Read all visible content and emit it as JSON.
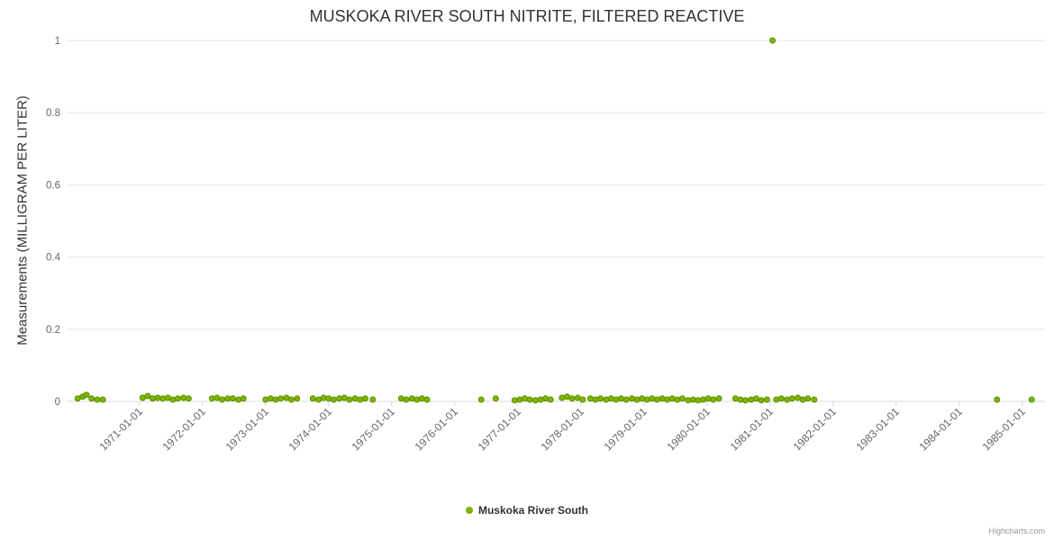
{
  "chart": {
    "title": "MUSKOKA RIVER SOUTH NITRITE, FILTERED REACTIVE",
    "credits": "Highcharts.com"
  },
  "chart_data": {
    "type": "scatter",
    "title": "MUSKOKA RIVER SOUTH NITRITE, FILTERED REACTIVE",
    "xlabel": "",
    "ylabel": "Measurements (MILLIGRAM PER LITER)",
    "ylim": [
      0,
      1
    ],
    "xlim": [
      1969.86,
      1985.36
    ],
    "grid": "horizontal-only",
    "legend_position": "bottom-center",
    "y_ticks": [
      0,
      0.2,
      0.4,
      0.6,
      0.8,
      1
    ],
    "x_ticks": [
      {
        "value": 1971,
        "label": "1971-01-01"
      },
      {
        "value": 1972,
        "label": "1972-01-01"
      },
      {
        "value": 1973,
        "label": "1973-01-01"
      },
      {
        "value": 1974,
        "label": "1974-01-01"
      },
      {
        "value": 1975,
        "label": "1975-01-01"
      },
      {
        "value": 1976,
        "label": "1976-01-01"
      },
      {
        "value": 1977,
        "label": "1977-01-01"
      },
      {
        "value": 1978,
        "label": "1978-01-01"
      },
      {
        "value": 1979,
        "label": "1979-01-01"
      },
      {
        "value": 1980,
        "label": "1980-01-01"
      },
      {
        "value": 1981,
        "label": "1981-01-01"
      },
      {
        "value": 1982,
        "label": "1982-01-01"
      },
      {
        "value": 1983,
        "label": "1983-01-01"
      },
      {
        "value": 1984,
        "label": "1984-01-01"
      },
      {
        "value": 1985,
        "label": "1985-01-01"
      }
    ],
    "series": [
      {
        "name": "Muskoka River South",
        "color": "#7db500",
        "stroke": "#5f8f00",
        "points": [
          [
            1970.02,
            0.008
          ],
          [
            1970.1,
            0.013
          ],
          [
            1970.16,
            0.018
          ],
          [
            1970.24,
            0.008
          ],
          [
            1970.33,
            0.005
          ],
          [
            1970.42,
            0.005
          ],
          [
            1971.05,
            0.01
          ],
          [
            1971.13,
            0.015
          ],
          [
            1971.21,
            0.008
          ],
          [
            1971.29,
            0.01
          ],
          [
            1971.37,
            0.008
          ],
          [
            1971.45,
            0.01
          ],
          [
            1971.53,
            0.005
          ],
          [
            1971.61,
            0.008
          ],
          [
            1971.7,
            0.01
          ],
          [
            1971.78,
            0.008
          ],
          [
            1972.15,
            0.008
          ],
          [
            1972.23,
            0.01
          ],
          [
            1972.31,
            0.005
          ],
          [
            1972.4,
            0.008
          ],
          [
            1972.48,
            0.008
          ],
          [
            1972.57,
            0.005
          ],
          [
            1972.65,
            0.008
          ],
          [
            1973.0,
            0.005
          ],
          [
            1973.08,
            0.008
          ],
          [
            1973.16,
            0.005
          ],
          [
            1973.24,
            0.008
          ],
          [
            1973.33,
            0.01
          ],
          [
            1973.41,
            0.005
          ],
          [
            1973.5,
            0.008
          ],
          [
            1973.75,
            0.008
          ],
          [
            1973.84,
            0.005
          ],
          [
            1973.92,
            0.01
          ],
          [
            1974.0,
            0.008
          ],
          [
            1974.08,
            0.005
          ],
          [
            1974.17,
            0.008
          ],
          [
            1974.25,
            0.01
          ],
          [
            1974.33,
            0.005
          ],
          [
            1974.42,
            0.008
          ],
          [
            1974.5,
            0.005
          ],
          [
            1974.58,
            0.008
          ],
          [
            1974.7,
            0.005
          ],
          [
            1975.15,
            0.008
          ],
          [
            1975.23,
            0.005
          ],
          [
            1975.32,
            0.008
          ],
          [
            1975.4,
            0.005
          ],
          [
            1975.48,
            0.008
          ],
          [
            1975.56,
            0.005
          ],
          [
            1976.42,
            0.005
          ],
          [
            1976.65,
            0.008
          ],
          [
            1976.95,
            0.003
          ],
          [
            1977.03,
            0.005
          ],
          [
            1977.11,
            0.008
          ],
          [
            1977.19,
            0.005
          ],
          [
            1977.28,
            0.003
          ],
          [
            1977.36,
            0.005
          ],
          [
            1977.44,
            0.008
          ],
          [
            1977.52,
            0.005
          ],
          [
            1977.7,
            0.01
          ],
          [
            1977.78,
            0.013
          ],
          [
            1977.86,
            0.008
          ],
          [
            1977.95,
            0.01
          ],
          [
            1978.03,
            0.005
          ],
          [
            1978.15,
            0.008
          ],
          [
            1978.23,
            0.005
          ],
          [
            1978.31,
            0.008
          ],
          [
            1978.4,
            0.005
          ],
          [
            1978.48,
            0.008
          ],
          [
            1978.56,
            0.005
          ],
          [
            1978.64,
            0.008
          ],
          [
            1978.72,
            0.005
          ],
          [
            1978.81,
            0.008
          ],
          [
            1978.89,
            0.005
          ],
          [
            1978.97,
            0.008
          ],
          [
            1979.05,
            0.005
          ],
          [
            1979.13,
            0.008
          ],
          [
            1979.21,
            0.005
          ],
          [
            1979.29,
            0.008
          ],
          [
            1979.37,
            0.005
          ],
          [
            1979.45,
            0.008
          ],
          [
            1979.53,
            0.005
          ],
          [
            1979.61,
            0.008
          ],
          [
            1979.7,
            0.003
          ],
          [
            1979.78,
            0.005
          ],
          [
            1979.86,
            0.003
          ],
          [
            1979.94,
            0.005
          ],
          [
            1980.02,
            0.008
          ],
          [
            1980.1,
            0.005
          ],
          [
            1980.19,
            0.008
          ],
          [
            1980.45,
            0.008
          ],
          [
            1980.53,
            0.005
          ],
          [
            1980.61,
            0.003
          ],
          [
            1980.7,
            0.005
          ],
          [
            1980.78,
            0.008
          ],
          [
            1980.86,
            0.003
          ],
          [
            1980.95,
            0.005
          ],
          [
            1981.04,
            1.0
          ],
          [
            1981.1,
            0.005
          ],
          [
            1981.18,
            0.008
          ],
          [
            1981.27,
            0.005
          ],
          [
            1981.35,
            0.008
          ],
          [
            1981.44,
            0.01
          ],
          [
            1981.52,
            0.005
          ],
          [
            1981.6,
            0.008
          ],
          [
            1981.7,
            0.005
          ],
          [
            1984.6,
            0.005
          ],
          [
            1985.15,
            0.005
          ]
        ]
      }
    ]
  }
}
